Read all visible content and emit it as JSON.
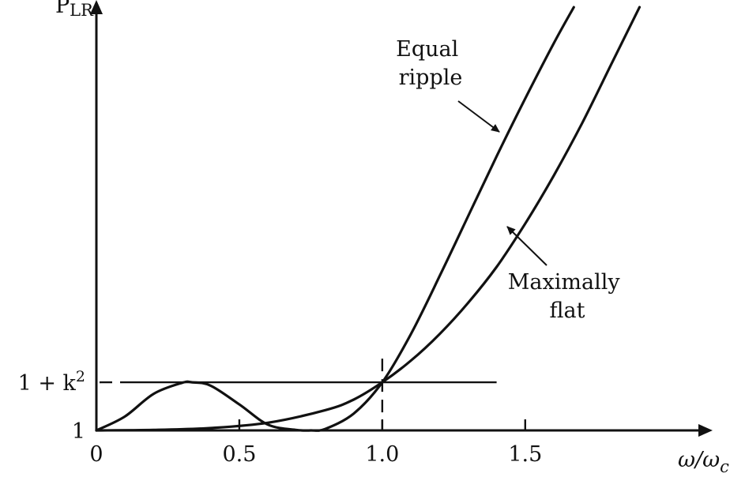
{
  "chart_data": {
    "type": "line",
    "ylabel_main": "P",
    "ylabel_sub": "LR",
    "xlabel_main": "ω/ω",
    "xlabel_sub": "c",
    "x_ticks": [
      {
        "value": 0,
        "label": "0"
      },
      {
        "value": 0.5,
        "label": "0.5"
      },
      {
        "value": 1.0,
        "label": "1.0"
      },
      {
        "value": 1.5,
        "label": "1.5"
      }
    ],
    "y_ticks": [
      {
        "value": 1,
        "label": "1"
      },
      {
        "value": 2,
        "label_main": "1 + k",
        "label_sup": "2"
      }
    ],
    "reference_level": {
      "value": 2,
      "x_range": [
        0,
        1.4
      ]
    },
    "reference_cutoff": {
      "value": 1.0
    },
    "xlim": [
      0,
      2.15
    ],
    "ylim": [
      1,
      9.95
    ],
    "series": [
      {
        "name": "Equal ripple",
        "name_lines": [
          "Equal",
          "ripple"
        ],
        "x": [
          0,
          0.1,
          0.2,
          0.3,
          0.335,
          0.4,
          0.5,
          0.6,
          0.7,
          0.75,
          0.8,
          0.9,
          1.0,
          1.1,
          1.2,
          1.3,
          1.4,
          1.5,
          1.6,
          1.67
        ],
        "y": [
          1,
          1.29,
          1.76,
          1.99,
          2.0,
          1.93,
          1.54,
          1.12,
          1.01,
          1.0,
          1.03,
          1.35,
          2.0,
          3.0,
          4.2,
          5.45,
          6.7,
          7.9,
          9.05,
          9.8
        ]
      },
      {
        "name": "Maximally flat",
        "name_lines": [
          "Maximally",
          "flat"
        ],
        "x": [
          0,
          0.2,
          0.4,
          0.6,
          0.8,
          0.9,
          1.0,
          1.1,
          1.2,
          1.3,
          1.4,
          1.5,
          1.6,
          1.7,
          1.8,
          1.9
        ],
        "y": [
          1,
          1.01,
          1.05,
          1.16,
          1.42,
          1.64,
          2.0,
          2.45,
          3.0,
          3.65,
          4.4,
          5.3,
          6.3,
          7.4,
          8.6,
          9.8
        ]
      }
    ]
  }
}
